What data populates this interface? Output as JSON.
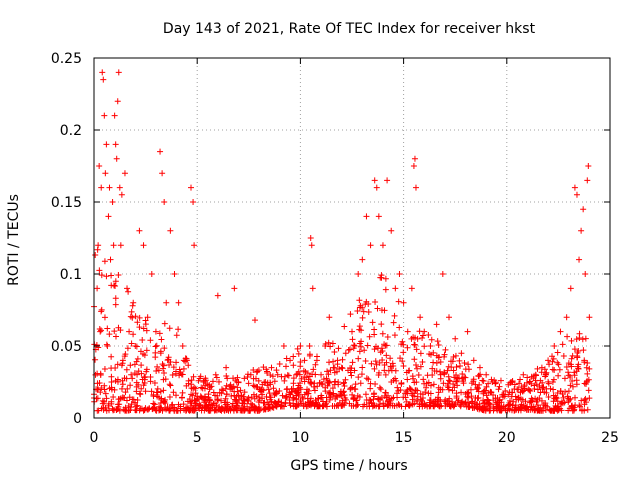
{
  "chart_data": {
    "type": "scatter",
    "title": "Day 143 of 2021, Rate Of TEC Index for receiver hkst",
    "xlabel": "GPS time / hours",
    "ylabel": "ROTI / TECUs",
    "xlim": [
      0,
      25
    ],
    "ylim": [
      0,
      0.25
    ],
    "xticks": [
      0,
      5,
      10,
      15,
      20,
      25
    ],
    "xtick_labels": [
      "0",
      "5",
      "10",
      "15",
      "20",
      "25"
    ],
    "yticks": [
      0,
      0.05,
      0.1,
      0.15,
      0.2,
      0.25
    ],
    "ytick_labels": [
      "0",
      "0.05",
      "0.1",
      "0.15",
      "0.2",
      "0.25"
    ],
    "grid": true,
    "marker": "plus",
    "series": [
      {
        "name": "ROTI",
        "color": "#ff0000",
        "points": [
          [
            0.1,
            0.02
          ],
          [
            0.15,
            0.09
          ],
          [
            0.2,
            0.12
          ],
          [
            0.25,
            0.175
          ],
          [
            0.3,
            0.06
          ],
          [
            0.35,
            0.16
          ],
          [
            0.4,
            0.24
          ],
          [
            0.45,
            0.235
          ],
          [
            0.5,
            0.21
          ],
          [
            0.55,
            0.17
          ],
          [
            0.6,
            0.19
          ],
          [
            0.65,
            0.05
          ],
          [
            0.7,
            0.14
          ],
          [
            0.75,
            0.16
          ],
          [
            0.8,
            0.11
          ],
          [
            0.85,
            0.025
          ],
          [
            0.9,
            0.15
          ],
          [
            0.95,
            0.12
          ],
          [
            1.0,
            0.21
          ],
          [
            1.05,
            0.19
          ],
          [
            1.1,
            0.18
          ],
          [
            1.15,
            0.22
          ],
          [
            1.2,
            0.24
          ],
          [
            1.25,
            0.16
          ],
          [
            1.3,
            0.12
          ],
          [
            1.35,
            0.155
          ],
          [
            1.4,
            0.04
          ],
          [
            1.5,
            0.17
          ],
          [
            1.6,
            0.09
          ],
          [
            1.7,
            0.06
          ],
          [
            1.8,
            0.03
          ],
          [
            1.9,
            0.08
          ],
          [
            2.0,
            0.05
          ],
          [
            2.2,
            0.13
          ],
          [
            2.4,
            0.12
          ],
          [
            2.6,
            0.07
          ],
          [
            2.8,
            0.1
          ],
          [
            3.0,
            0.06
          ],
          [
            3.2,
            0.185
          ],
          [
            3.3,
            0.17
          ],
          [
            3.4,
            0.15
          ],
          [
            3.5,
            0.08
          ],
          [
            3.7,
            0.13
          ],
          [
            3.9,
            0.1
          ],
          [
            4.1,
            0.08
          ],
          [
            4.3,
            0.05
          ],
          [
            4.5,
            0.04
          ],
          [
            4.7,
            0.16
          ],
          [
            4.8,
            0.15
          ],
          [
            4.85,
            0.12
          ],
          [
            5.0,
            0.015
          ],
          [
            5.3,
            0.025
          ],
          [
            5.6,
            0.02
          ],
          [
            5.9,
            0.03
          ],
          [
            6.0,
            0.085
          ],
          [
            6.2,
            0.02
          ],
          [
            6.4,
            0.035
          ],
          [
            6.6,
            0.02
          ],
          [
            6.8,
            0.09
          ],
          [
            7.0,
            0.025
          ],
          [
            7.3,
            0.018
          ],
          [
            7.6,
            0.03
          ],
          [
            7.8,
            0.068
          ],
          [
            8.0,
            0.02
          ],
          [
            8.3,
            0.025
          ],
          [
            8.6,
            0.035
          ],
          [
            8.9,
            0.03
          ],
          [
            9.2,
            0.05
          ],
          [
            9.5,
            0.04
          ],
          [
            9.8,
            0.03
          ],
          [
            10.0,
            0.05
          ],
          [
            10.2,
            0.04
          ],
          [
            10.5,
            0.125
          ],
          [
            10.55,
            0.12
          ],
          [
            10.6,
            0.09
          ],
          [
            10.8,
            0.04
          ],
          [
            11.0,
            0.03
          ],
          [
            11.2,
            0.05
          ],
          [
            11.4,
            0.07
          ],
          [
            11.6,
            0.035
          ],
          [
            11.8,
            0.04
          ],
          [
            12.0,
            0.035
          ],
          [
            12.2,
            0.045
          ],
          [
            12.5,
            0.06
          ],
          [
            12.8,
            0.1
          ],
          [
            13.0,
            0.11
          ],
          [
            13.2,
            0.14
          ],
          [
            13.4,
            0.12
          ],
          [
            13.6,
            0.165
          ],
          [
            13.7,
            0.16
          ],
          [
            13.8,
            0.14
          ],
          [
            14.0,
            0.12
          ],
          [
            14.2,
            0.165
          ],
          [
            14.4,
            0.13
          ],
          [
            14.6,
            0.09
          ],
          [
            14.8,
            0.1
          ],
          [
            15.0,
            0.08
          ],
          [
            15.2,
            0.06
          ],
          [
            15.4,
            0.09
          ],
          [
            15.5,
            0.175
          ],
          [
            15.55,
            0.18
          ],
          [
            15.6,
            0.16
          ],
          [
            15.8,
            0.07
          ],
          [
            16.0,
            0.06
          ],
          [
            16.3,
            0.05
          ],
          [
            16.6,
            0.065
          ],
          [
            16.9,
            0.1
          ],
          [
            17.2,
            0.07
          ],
          [
            17.5,
            0.055
          ],
          [
            17.8,
            0.045
          ],
          [
            18.1,
            0.06
          ],
          [
            18.4,
            0.04
          ],
          [
            18.7,
            0.035
          ],
          [
            19.0,
            0.03
          ],
          [
            19.3,
            0.025
          ],
          [
            19.6,
            0.02
          ],
          [
            19.9,
            0.015
          ],
          [
            20.2,
            0.025
          ],
          [
            20.5,
            0.02
          ],
          [
            20.8,
            0.03
          ],
          [
            21.1,
            0.025
          ],
          [
            21.4,
            0.03
          ],
          [
            21.7,
            0.035
          ],
          [
            22.0,
            0.04
          ],
          [
            22.3,
            0.05
          ],
          [
            22.6,
            0.06
          ],
          [
            22.9,
            0.07
          ],
          [
            23.1,
            0.09
          ],
          [
            23.3,
            0.16
          ],
          [
            23.4,
            0.155
          ],
          [
            23.5,
            0.11
          ],
          [
            23.6,
            0.13
          ],
          [
            23.7,
            0.145
          ],
          [
            23.8,
            0.1
          ],
          [
            23.9,
            0.165
          ],
          [
            23.95,
            0.175
          ],
          [
            24.0,
            0.07
          ]
        ]
      }
    ],
    "cloud": {
      "description": "dense background scatter of ROTI values, generated deterministically from per-hour envelope",
      "hour_envelope": [
        [
          0,
          0.005,
          0.12
        ],
        [
          1,
          0.005,
          0.11
        ],
        [
          2,
          0.005,
          0.08
        ],
        [
          3,
          0.005,
          0.07
        ],
        [
          4,
          0.005,
          0.065
        ],
        [
          5,
          0.005,
          0.03
        ],
        [
          6,
          0.005,
          0.03
        ],
        [
          7,
          0.005,
          0.03
        ],
        [
          8,
          0.005,
          0.035
        ],
        [
          9,
          0.008,
          0.04
        ],
        [
          10,
          0.008,
          0.05
        ],
        [
          11,
          0.008,
          0.05
        ],
        [
          12,
          0.008,
          0.06
        ],
        [
          13,
          0.008,
          0.09
        ],
        [
          14,
          0.008,
          0.1
        ],
        [
          15,
          0.008,
          0.08
        ],
        [
          16,
          0.008,
          0.06
        ],
        [
          17,
          0.008,
          0.05
        ],
        [
          18,
          0.008,
          0.04
        ],
        [
          19,
          0.005,
          0.03
        ],
        [
          20,
          0.005,
          0.025
        ],
        [
          21,
          0.005,
          0.03
        ],
        [
          22,
          0.005,
          0.04
        ],
        [
          23,
          0.005,
          0.06
        ],
        [
          24,
          0.005,
          0.06
        ]
      ],
      "points_per_hour": 70
    }
  }
}
